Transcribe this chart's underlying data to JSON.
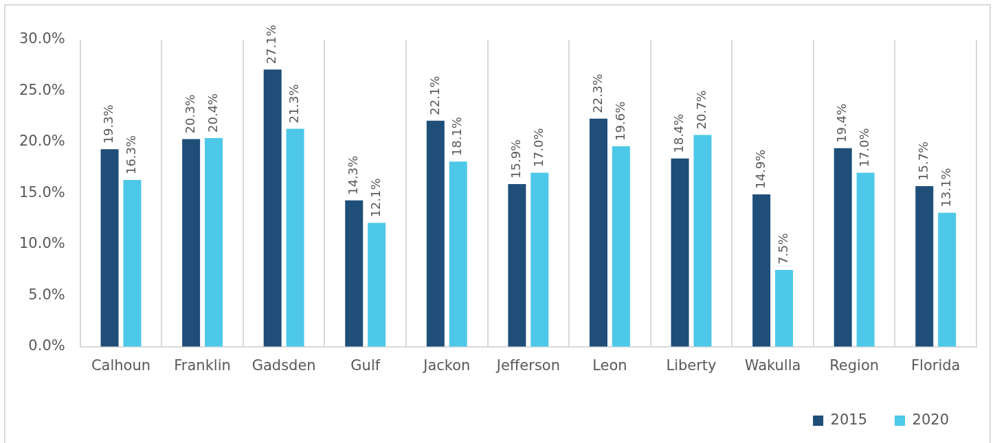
{
  "chart_data": {
    "type": "bar",
    "categories": [
      "Calhoun",
      "Franklin",
      "Gadsden",
      "Gulf",
      "Jackon",
      "Jefferson",
      "Leon",
      "Liberty",
      "Wakulla",
      "Region",
      "Florida"
    ],
    "series": [
      {
        "name": "2015",
        "color": "#1f4e79",
        "values": [
          19.3,
          20.3,
          27.1,
          14.3,
          22.1,
          15.9,
          22.3,
          18.4,
          14.9,
          19.4,
          15.7
        ],
        "value_labels": [
          "19.3%",
          "20.3%",
          "27.1%",
          "14.3%",
          "22.1%",
          "15.9%",
          "22.3%",
          "18.4%",
          "14.9%",
          "19.4%",
          "15.7%"
        ]
      },
      {
        "name": "2020",
        "color": "#4dc8e8",
        "values": [
          16.3,
          20.4,
          21.3,
          12.1,
          18.1,
          17.0,
          19.6,
          20.7,
          7.5,
          17.0,
          13.1
        ],
        "value_labels": [
          "16.3%",
          "20.4%",
          "21.3%",
          "12.1%",
          "18.1%",
          "17.0%",
          "19.6%",
          "20.7%",
          "7.5%",
          "17.0%",
          "13.1%"
        ]
      }
    ],
    "ylim": [
      0,
      30
    ],
    "yticks": [
      {
        "value": 0,
        "label": "0.0%"
      },
      {
        "value": 5,
        "label": "5.0%"
      },
      {
        "value": 10,
        "label": "10.0%"
      },
      {
        "value": 15,
        "label": "15.0%"
      },
      {
        "value": 20,
        "label": "20.0%"
      },
      {
        "value": 25,
        "label": "25.0%"
      },
      {
        "value": 30,
        "label": "30.0%"
      }
    ],
    "grid": "x",
    "legend": "bottom right"
  }
}
